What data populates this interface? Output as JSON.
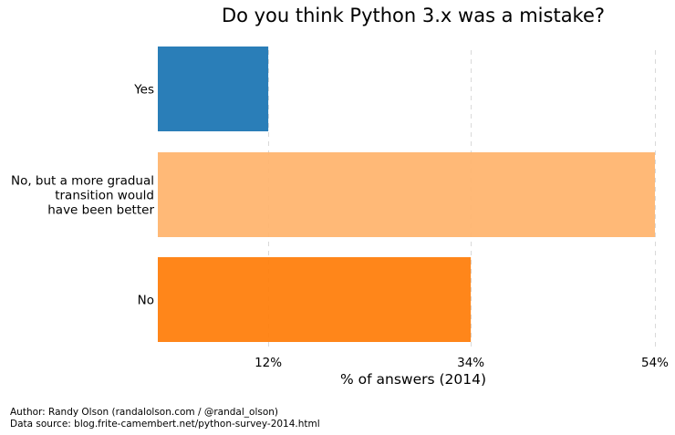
{
  "chart_data": {
    "type": "bar",
    "orientation": "horizontal",
    "title": "Do you think Python 3.x was a mistake?",
    "xlabel": "% of answers (2014)",
    "ylabel": "",
    "categories": [
      [
        "Yes"
      ],
      [
        "No, but a more gradual",
        "transition would",
        "have been better"
      ],
      [
        "No"
      ]
    ],
    "values": [
      12,
      54,
      34
    ],
    "xlim": [
      0,
      54
    ],
    "xticks": [
      12,
      34,
      54
    ],
    "xtick_labels": [
      "12%",
      "34%",
      "54%"
    ],
    "grid": "vertical dashed lines at tick values",
    "bar_colors": [
      "#1f77b4",
      "#ffb570",
      "#ff7f0e"
    ],
    "grid_color": "#d9d9d9",
    "text_color": "#000000"
  },
  "footer": {
    "author": "Author: Randy Olson (randalolson.com / @randal_olson)",
    "source": "Data source: blog.frite-camembert.net/python-survey-2014.html"
  }
}
